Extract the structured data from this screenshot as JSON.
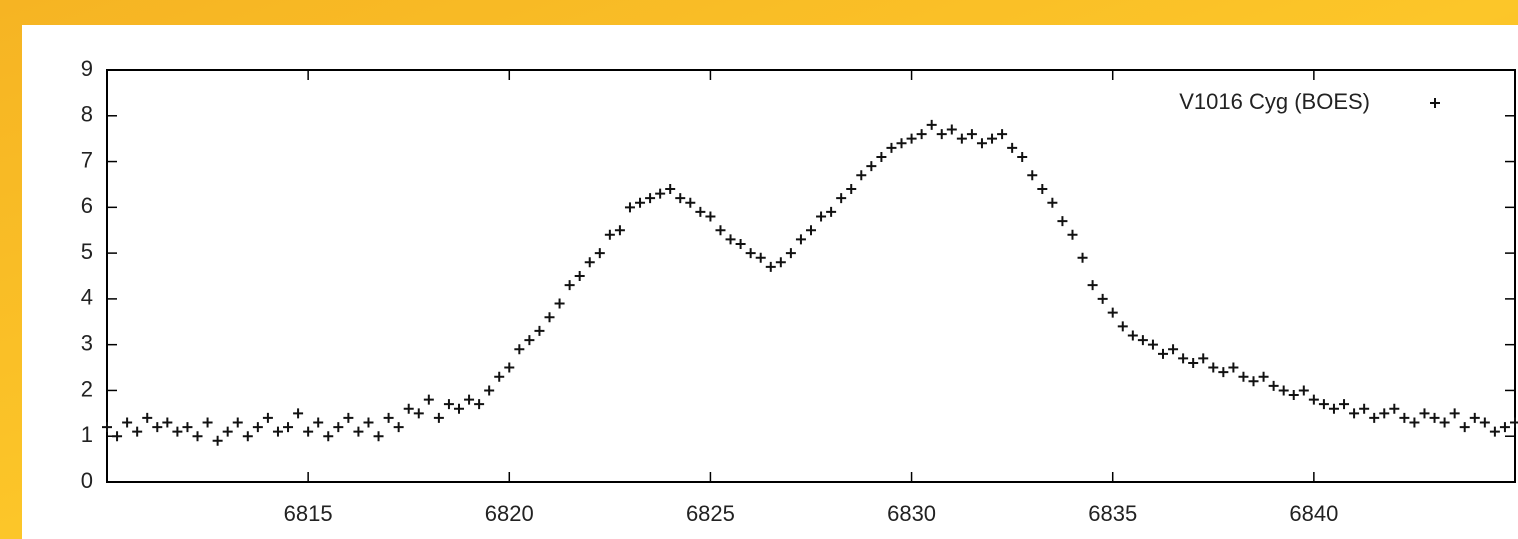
{
  "chart_data": {
    "type": "scatter",
    "xlim": [
      6810,
      6845
    ],
    "xticks": [
      6815,
      6820,
      6825,
      6830,
      6835,
      6840
    ],
    "ylim": [
      0,
      9
    ],
    "yticks": [
      0,
      1,
      2,
      3,
      4,
      5,
      6,
      7,
      8,
      9
    ],
    "legend": "upper right",
    "series": [
      {
        "name": "V1016 Cyg (BOES)",
        "color": "#111111",
        "x": [
          6810,
          6810.25,
          6810.5,
          6810.75,
          6811,
          6811.25,
          6811.5,
          6811.75,
          6812,
          6812.25,
          6812.5,
          6812.75,
          6813,
          6813.25,
          6813.5,
          6813.75,
          6814,
          6814.25,
          6814.5,
          6814.75,
          6815,
          6815.25,
          6815.5,
          6815.75,
          6816,
          6816.25,
          6816.5,
          6816.75,
          6817,
          6817.25,
          6817.5,
          6817.75,
          6818,
          6818.25,
          6818.5,
          6818.75,
          6819,
          6819.25,
          6819.5,
          6819.75,
          6820,
          6820.25,
          6820.5,
          6820.75,
          6821,
          6821.25,
          6821.5,
          6821.75,
          6822,
          6822.25,
          6822.5,
          6822.75,
          6823,
          6823.25,
          6823.5,
          6823.75,
          6824,
          6824.25,
          6824.5,
          6824.75,
          6825,
          6825.25,
          6825.5,
          6825.75,
          6826,
          6826.25,
          6826.5,
          6826.75,
          6827,
          6827.25,
          6827.5,
          6827.75,
          6828,
          6828.25,
          6828.5,
          6828.75,
          6829,
          6829.25,
          6829.5,
          6829.75,
          6830,
          6830.25,
          6830.5,
          6830.75,
          6831,
          6831.25,
          6831.5,
          6831.75,
          6832,
          6832.25,
          6832.5,
          6832.75,
          6833,
          6833.25,
          6833.5,
          6833.75,
          6834,
          6834.25,
          6834.5,
          6834.75,
          6835,
          6835.25,
          6835.5,
          6835.75,
          6836,
          6836.25,
          6836.5,
          6836.75,
          6837,
          6837.25,
          6837.5,
          6837.75,
          6838,
          6838.25,
          6838.5,
          6838.75,
          6839,
          6839.25,
          6839.5,
          6839.75,
          6840,
          6840.25,
          6840.5,
          6840.75,
          6841,
          6841.25,
          6841.5,
          6841.75,
          6842,
          6842.25,
          6842.5,
          6842.75,
          6843,
          6843.25,
          6843.5,
          6843.75,
          6844,
          6844.25,
          6844.5,
          6844.75,
          6845
        ],
        "values": [
          1.2,
          1.0,
          1.3,
          1.1,
          1.4,
          1.2,
          1.3,
          1.1,
          1.2,
          1.0,
          1.3,
          0.9,
          1.1,
          1.3,
          1.0,
          1.2,
          1.4,
          1.1,
          1.2,
          1.5,
          1.1,
          1.3,
          1.0,
          1.2,
          1.4,
          1.1,
          1.3,
          1.0,
          1.4,
          1.2,
          1.6,
          1.5,
          1.8,
          1.4,
          1.7,
          1.6,
          1.8,
          1.7,
          2.0,
          2.3,
          2.5,
          2.9,
          3.1,
          3.3,
          3.6,
          3.9,
          4.3,
          4.5,
          4.8,
          5.0,
          5.4,
          5.5,
          6.0,
          6.1,
          6.2,
          6.3,
          6.4,
          6.2,
          6.1,
          5.9,
          5.8,
          5.5,
          5.3,
          5.2,
          5.0,
          4.9,
          4.7,
          4.8,
          5.0,
          5.3,
          5.5,
          5.8,
          5.9,
          6.2,
          6.4,
          6.7,
          6.9,
          7.1,
          7.3,
          7.4,
          7.5,
          7.6,
          7.8,
          7.6,
          7.7,
          7.5,
          7.6,
          7.4,
          7.5,
          7.6,
          7.3,
          7.1,
          6.7,
          6.4,
          6.1,
          5.7,
          5.4,
          4.9,
          4.3,
          4.0,
          3.7,
          3.4,
          3.2,
          3.1,
          3.0,
          2.8,
          2.9,
          2.7,
          2.6,
          2.7,
          2.5,
          2.4,
          2.5,
          2.3,
          2.2,
          2.3,
          2.1,
          2.0,
          1.9,
          2.0,
          1.8,
          1.7,
          1.6,
          1.7,
          1.5,
          1.6,
          1.4,
          1.5,
          1.6,
          1.4,
          1.3,
          1.5,
          1.4,
          1.3,
          1.5,
          1.2,
          1.4,
          1.3,
          1.1,
          1.2,
          1.3
        ]
      }
    ]
  }
}
